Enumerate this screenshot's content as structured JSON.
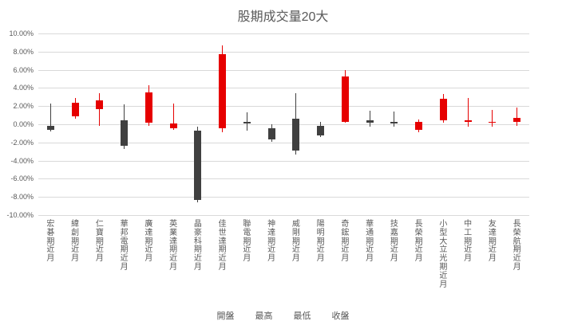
{
  "chart_data": {
    "type": "candlestick",
    "title": "股期成交量20大",
    "xlabel": "",
    "ylabel": "",
    "ylim": [
      -10,
      10
    ],
    "y_tick_step": 2,
    "y_tick_format": "0.00%",
    "grid": true,
    "legend": [
      "開盤",
      "最高",
      "最低",
      "收盤"
    ],
    "legend_position": "bottom",
    "up_color": "#e60000",
    "down_color": "#404040",
    "gridline_color": "#d9d9d9",
    "text_color": "#595959",
    "categories": [
      "宏碁期近月",
      "緯創期近月",
      "仁寶期近月",
      "華邦電期近月",
      "廣達期近月",
      "英業達期近月",
      "晶豪科期近月",
      "佳世達期近月",
      "聯電期近月",
      "神達期近月",
      "威剛期近月",
      "陽明期近月",
      "奇鋐期近月",
      "華通期近月",
      "技嘉期近月",
      "長榮期近月",
      "小型大立光期近月",
      "中工期近月",
      "友達期近月",
      "長榮航期近月"
    ],
    "candles": [
      {
        "open": -0.2,
        "high": 2.3,
        "low": -0.8,
        "close": -0.6
      },
      {
        "open": 0.9,
        "high": 2.9,
        "low": 0.6,
        "close": 2.4
      },
      {
        "open": 1.7,
        "high": 3.4,
        "low": -0.2,
        "close": 2.6
      },
      {
        "open": 0.4,
        "high": 2.2,
        "low": -2.7,
        "close": -2.4
      },
      {
        "open": 0.2,
        "high": 4.3,
        "low": -0.2,
        "close": 3.5
      },
      {
        "open": -0.4,
        "high": 2.3,
        "low": -0.6,
        "close": 0.1
      },
      {
        "open": -0.7,
        "high": -0.3,
        "low": -8.6,
        "close": -8.3
      },
      {
        "open": -0.4,
        "high": 8.7,
        "low": -0.9,
        "close": 7.7
      },
      {
        "open": 0.3,
        "high": 1.3,
        "low": -0.7,
        "close": 0.1
      },
      {
        "open": -0.4,
        "high": 0.0,
        "low": -1.9,
        "close": -1.7
      },
      {
        "open": 0.6,
        "high": 3.4,
        "low": -3.3,
        "close": -2.9
      },
      {
        "open": -0.2,
        "high": 0.3,
        "low": -1.4,
        "close": -1.2
      },
      {
        "open": 0.3,
        "high": 6.0,
        "low": 0.2,
        "close": 5.3
      },
      {
        "open": 0.4,
        "high": 1.5,
        "low": -0.3,
        "close": 0.2
      },
      {
        "open": 0.3,
        "high": 1.4,
        "low": -0.3,
        "close": 0.1
      },
      {
        "open": -0.6,
        "high": 0.5,
        "low": -0.9,
        "close": 0.3
      },
      {
        "open": 0.4,
        "high": 3.3,
        "low": 0.2,
        "close": 2.8
      },
      {
        "open": 0.3,
        "high": 2.9,
        "low": -0.3,
        "close": 0.4
      },
      {
        "open": 0.2,
        "high": 1.6,
        "low": -0.3,
        "close": 0.3
      },
      {
        "open": 0.3,
        "high": 1.8,
        "low": -0.2,
        "close": 0.7
      }
    ]
  }
}
